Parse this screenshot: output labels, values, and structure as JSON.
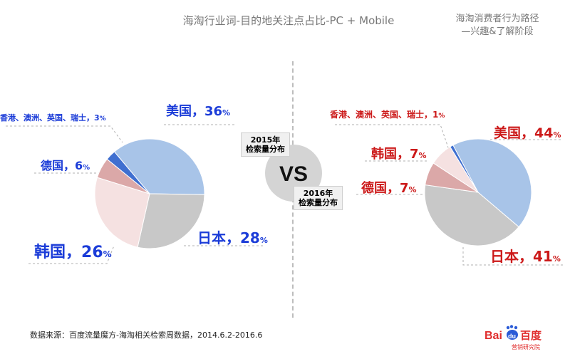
{
  "header": {
    "title": "海淘行业词-目的地关注点占比-PC + Mobile",
    "subtitle_line1": "海淘消费者行为路径",
    "subtitle_line2": "—兴趣&了解阶段"
  },
  "vs_label": "VS",
  "footer": {
    "source": "数据来源：百度流量魔方-海淘相关检索周数据，2014.6.2-2016.6"
  },
  "logo": {
    "text_bai": "Bai",
    "text_du": "du",
    "text_baidu_cn": "百度",
    "subtext": "营销研究院"
  },
  "colors": {
    "usa": "#a8c4e8",
    "japan": "#c8c8c8",
    "korea": "#f5e1e1",
    "germany": "#dba8a8",
    "others": "#3f6fd0",
    "blue_label": "#1b3cd8",
    "red_label": "#cc1a1a"
  },
  "chart_data": [
    {
      "type": "pie",
      "box_line1": "2015年",
      "box_line2": "检索量分布",
      "slices": [
        {
          "label": "美国",
          "value": 36,
          "value_text": "36",
          "unit": "%"
        },
        {
          "label": "日本",
          "value": 28,
          "value_text": "28",
          "unit": "%"
        },
        {
          "label": "韩国",
          "value": 26,
          "value_text": "26",
          "unit": "%"
        },
        {
          "label": "德国",
          "value": 6,
          "value_text": "6",
          "unit": "%"
        },
        {
          "label": "香港、澳洲、英国、瑞士",
          "value": 3,
          "value_text": "3",
          "unit": "%"
        }
      ]
    },
    {
      "type": "pie",
      "box_line1": "2016年",
      "box_line2": "检索量分布",
      "slices": [
        {
          "label": "美国",
          "value": 44,
          "value_text": "44",
          "unit": "%"
        },
        {
          "label": "日本",
          "value": 41,
          "value_text": "41",
          "unit": "%"
        },
        {
          "label": "德国",
          "value": 7,
          "value_text": "7",
          "unit": "%"
        },
        {
          "label": "韩国",
          "value": 7,
          "value_text": "7",
          "unit": "%"
        },
        {
          "label": "香港、澳洲、英国、瑞士",
          "value": 1,
          "value_text": "1",
          "unit": "%"
        }
      ]
    }
  ]
}
